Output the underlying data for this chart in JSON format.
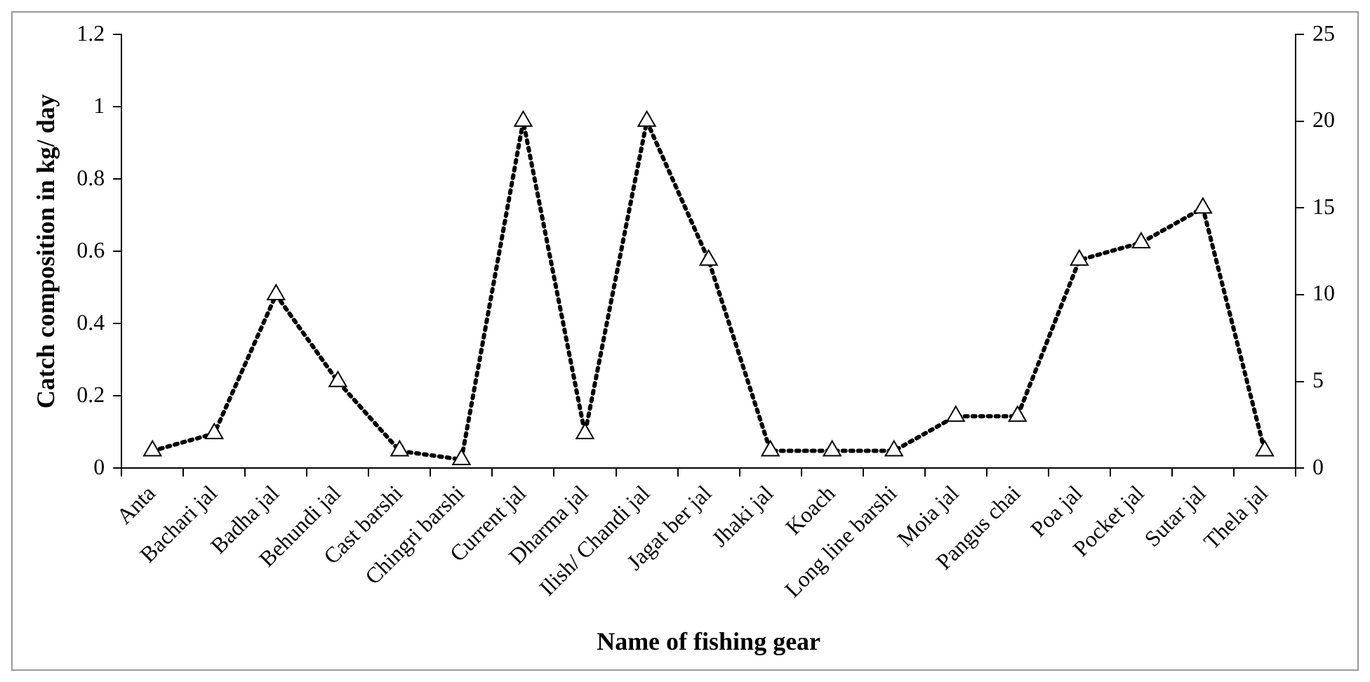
{
  "chart_data": {
    "type": "line",
    "ylabel": "Catch composition in kg/ day",
    "xlabel": "Name of fishing gear",
    "categories": [
      "Anta",
      "Bachari jal",
      "Badha jal",
      "Behundi jal",
      "Cast barshi",
      "Chingri barshi",
      "Current jal",
      "Dharma jal",
      "Ilish/ Chandi jal",
      "Jagat ber jal",
      "Jhaki jal",
      "Koach",
      "Long line barshi",
      "Moia jal",
      "Pangus chai",
      "Poa jal",
      "Pocket jal",
      "Sutar jal",
      "Thela jal"
    ],
    "series": [
      {
        "color": "#000000",
        "axis": "y2",
        "values": [
          1,
          2,
          10,
          5,
          1,
          0.5,
          20,
          2,
          20,
          12,
          1,
          1,
          1,
          3,
          3,
          12,
          13,
          15,
          1
        ]
      }
    ],
    "ylim": [
      0,
      1.2
    ],
    "yticks": [
      0,
      0.2,
      0.4,
      0.6,
      0.8,
      1,
      1.2
    ],
    "y2lim": [
      0,
      25
    ],
    "y2ticks": [
      0,
      5,
      10,
      15,
      20,
      25
    ],
    "grid": false,
    "legend": false,
    "marker": "triangle",
    "line_style": "dotted"
  }
}
